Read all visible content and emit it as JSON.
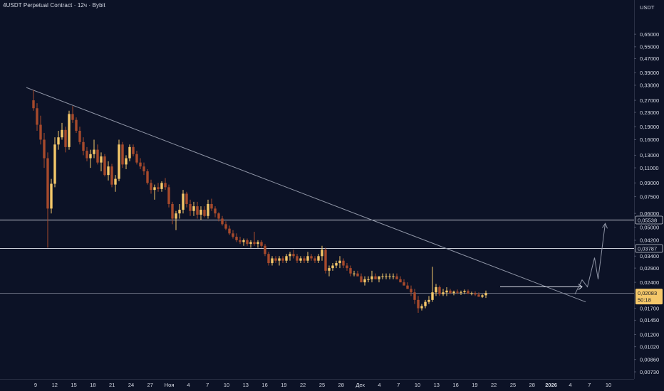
{
  "title": "4USDT Perpetual Contract · 12ч · Bybit",
  "colors": {
    "background": "#0c1226",
    "up": "#f5c86a",
    "down": "#a64a2c",
    "trendline": "#8f95a6",
    "level": "#c8ccd6",
    "projection": "#8f95a6",
    "text": "#d7dbe6",
    "price_tag": "#f5c86a"
  },
  "chart_data": {
    "type": "candlestick",
    "title": "4USDT Perpetual Contract · 12ч · Bybit",
    "currency": "USDT",
    "y_scale": "log",
    "ylim": [
      0.0069,
      0.95
    ],
    "y_ticks": [
      "0,65000",
      "0,55000",
      "0,47000",
      "0,39000",
      "0,33000",
      "0,27000",
      "0,23000",
      "0,19000",
      "0,16000",
      "0,13000",
      "0,11000",
      "0,09000",
      "0,07500",
      "0,06000",
      "0,05000",
      "0,04200",
      "0,03400",
      "0,02900",
      "0,02400",
      "0,01700",
      "0,01450",
      "0,01200",
      "0,01020",
      "0,00860",
      "0,00730"
    ],
    "x_ticks": [
      "9",
      "12",
      "15",
      "18",
      "21",
      "24",
      "27",
      "Ноя",
      "4",
      "7",
      "10",
      "13",
      "16",
      "19",
      "22",
      "25",
      "28",
      "Дек",
      "4",
      "7",
      "10",
      "13",
      "16",
      "19",
      "22",
      "25",
      "28",
      "2026",
      "4",
      "7",
      "10"
    ],
    "x_ticks_bold": [
      "2026"
    ],
    "current_price": {
      "value": "0,02083",
      "countdown": "50:18"
    },
    "horizontal_levels": [
      {
        "value": 0.05538,
        "label": "0,05538"
      },
      {
        "value": 0.03787,
        "label": "0,03787"
      },
      {
        "value": 0.02083
      }
    ],
    "trendline": {
      "from": {
        "candle": 0,
        "price": 0.32
      },
      "to": {
        "candle": 155,
        "price": 0.0185
      }
    },
    "range_arrow": {
      "from_candle": 131,
      "to_candle": 153,
      "price": 0.0226
    },
    "projection_path": [
      [
        152,
        0.0205
      ],
      [
        154,
        0.0248
      ],
      [
        155.5,
        0.0226
      ],
      [
        157.5,
        0.0333
      ],
      [
        158.5,
        0.025
      ],
      [
        160.5,
        0.0525
      ]
    ],
    "grid": false,
    "candles": [
      [
        0.27,
        0.31,
        0.235,
        0.243
      ],
      [
        0.243,
        0.26,
        0.18,
        0.195
      ],
      [
        0.195,
        0.22,
        0.15,
        0.16
      ],
      [
        0.16,
        0.175,
        0.11,
        0.125
      ],
      [
        0.125,
        0.135,
        0.038,
        0.064
      ],
      [
        0.064,
        0.095,
        0.06,
        0.089
      ],
      [
        0.089,
        0.165,
        0.085,
        0.15
      ],
      [
        0.15,
        0.18,
        0.14,
        0.165
      ],
      [
        0.165,
        0.2,
        0.16,
        0.182
      ],
      [
        0.182,
        0.19,
        0.135,
        0.145
      ],
      [
        0.145,
        0.235,
        0.14,
        0.225
      ],
      [
        0.225,
        0.25,
        0.2,
        0.208
      ],
      [
        0.208,
        0.215,
        0.175,
        0.18
      ],
      [
        0.18,
        0.19,
        0.15,
        0.155
      ],
      [
        0.155,
        0.165,
        0.13,
        0.138
      ],
      [
        0.138,
        0.145,
        0.12,
        0.125
      ],
      [
        0.125,
        0.14,
        0.11,
        0.132
      ],
      [
        0.132,
        0.16,
        0.125,
        0.14
      ],
      [
        0.14,
        0.15,
        0.115,
        0.118
      ],
      [
        0.118,
        0.135,
        0.105,
        0.128
      ],
      [
        0.128,
        0.132,
        0.098,
        0.1
      ],
      [
        0.1,
        0.12,
        0.093,
        0.112
      ],
      [
        0.112,
        0.116,
        0.085,
        0.088
      ],
      [
        0.088,
        0.1,
        0.08,
        0.095
      ],
      [
        0.095,
        0.16,
        0.092,
        0.15
      ],
      [
        0.15,
        0.155,
        0.11,
        0.115
      ],
      [
        0.115,
        0.13,
        0.108,
        0.125
      ],
      [
        0.125,
        0.15,
        0.12,
        0.145
      ],
      [
        0.145,
        0.15,
        0.128,
        0.132
      ],
      [
        0.132,
        0.138,
        0.115,
        0.118
      ],
      [
        0.118,
        0.125,
        0.108,
        0.112
      ],
      [
        0.112,
        0.118,
        0.1,
        0.105
      ],
      [
        0.105,
        0.108,
        0.088,
        0.09
      ],
      [
        0.09,
        0.094,
        0.078,
        0.082
      ],
      [
        0.082,
        0.088,
        0.072,
        0.085
      ],
      [
        0.085,
        0.09,
        0.08,
        0.083
      ],
      [
        0.083,
        0.092,
        0.08,
        0.09
      ],
      [
        0.09,
        0.096,
        0.082,
        0.085
      ],
      [
        0.085,
        0.088,
        0.065,
        0.068
      ],
      [
        0.068,
        0.07,
        0.052,
        0.056
      ],
      [
        0.056,
        0.062,
        0.048,
        0.06
      ],
      [
        0.06,
        0.068,
        0.056,
        0.063
      ],
      [
        0.063,
        0.082,
        0.06,
        0.078
      ],
      [
        0.078,
        0.08,
        0.065,
        0.068
      ],
      [
        0.068,
        0.072,
        0.058,
        0.062
      ],
      [
        0.062,
        0.07,
        0.058,
        0.066
      ],
      [
        0.066,
        0.07,
        0.056,
        0.059
      ],
      [
        0.059,
        0.066,
        0.055,
        0.063
      ],
      [
        0.063,
        0.066,
        0.057,
        0.058
      ],
      [
        0.058,
        0.072,
        0.056,
        0.068
      ],
      [
        0.068,
        0.073,
        0.062,
        0.064
      ],
      [
        0.064,
        0.066,
        0.057,
        0.06
      ],
      [
        0.06,
        0.061,
        0.054,
        0.056
      ],
      [
        0.056,
        0.058,
        0.051,
        0.052
      ],
      [
        0.052,
        0.054,
        0.048,
        0.049
      ],
      [
        0.049,
        0.051,
        0.045,
        0.046
      ],
      [
        0.046,
        0.048,
        0.043,
        0.044
      ],
      [
        0.044,
        0.046,
        0.041,
        0.042
      ],
      [
        0.042,
        0.044,
        0.04,
        0.041
      ],
      [
        0.041,
        0.043,
        0.039,
        0.042
      ],
      [
        0.042,
        0.043,
        0.039,
        0.04
      ],
      [
        0.04,
        0.042,
        0.038,
        0.041
      ],
      [
        0.041,
        0.047,
        0.039,
        0.04
      ],
      [
        0.04,
        0.042,
        0.038,
        0.041
      ],
      [
        0.041,
        0.042,
        0.038,
        0.039
      ],
      [
        0.039,
        0.04,
        0.034,
        0.035
      ],
      [
        0.035,
        0.036,
        0.03,
        0.031
      ],
      [
        0.031,
        0.034,
        0.03,
        0.033
      ],
      [
        0.033,
        0.034,
        0.031,
        0.032
      ],
      [
        0.032,
        0.034,
        0.03,
        0.033
      ],
      [
        0.033,
        0.034,
        0.031,
        0.032
      ],
      [
        0.032,
        0.035,
        0.031,
        0.034
      ],
      [
        0.034,
        0.036,
        0.032,
        0.035
      ],
      [
        0.035,
        0.037,
        0.033,
        0.034
      ],
      [
        0.034,
        0.035,
        0.031,
        0.032
      ],
      [
        0.032,
        0.034,
        0.031,
        0.033
      ],
      [
        0.033,
        0.034,
        0.031,
        0.032
      ],
      [
        0.032,
        0.036,
        0.031,
        0.034
      ],
      [
        0.034,
        0.035,
        0.032,
        0.033
      ],
      [
        0.033,
        0.034,
        0.031,
        0.032
      ],
      [
        0.032,
        0.035,
        0.031,
        0.034
      ],
      [
        0.034,
        0.039,
        0.032,
        0.037
      ],
      [
        0.037,
        0.038,
        0.027,
        0.028
      ],
      [
        0.028,
        0.03,
        0.026,
        0.029
      ],
      [
        0.029,
        0.031,
        0.028,
        0.03
      ],
      [
        0.03,
        0.032,
        0.029,
        0.031
      ],
      [
        0.031,
        0.034,
        0.029,
        0.032
      ],
      [
        0.032,
        0.033,
        0.029,
        0.03
      ],
      [
        0.03,
        0.031,
        0.028,
        0.029
      ],
      [
        0.029,
        0.03,
        0.026,
        0.027
      ],
      [
        0.027,
        0.028,
        0.026,
        0.027
      ],
      [
        0.027,
        0.028,
        0.026,
        0.026
      ],
      [
        0.026,
        0.027,
        0.024,
        0.024
      ],
      [
        0.024,
        0.026,
        0.023,
        0.025
      ],
      [
        0.025,
        0.026,
        0.024,
        0.025
      ],
      [
        0.025,
        0.028,
        0.024,
        0.026
      ],
      [
        0.026,
        0.027,
        0.025,
        0.025
      ],
      [
        0.025,
        0.026,
        0.024,
        0.026
      ],
      [
        0.026,
        0.027,
        0.025,
        0.026
      ],
      [
        0.026,
        0.027,
        0.025,
        0.026
      ],
      [
        0.026,
        0.027,
        0.025,
        0.026
      ],
      [
        0.026,
        0.027,
        0.025,
        0.026
      ],
      [
        0.026,
        0.027,
        0.025,
        0.025
      ],
      [
        0.025,
        0.026,
        0.024,
        0.024
      ],
      [
        0.024,
        0.025,
        0.023,
        0.023
      ],
      [
        0.023,
        0.024,
        0.022,
        0.022
      ],
      [
        0.022,
        0.023,
        0.02,
        0.021
      ],
      [
        0.021,
        0.022,
        0.018,
        0.019
      ],
      [
        0.019,
        0.02,
        0.016,
        0.017
      ],
      [
        0.017,
        0.018,
        0.0165,
        0.0175
      ],
      [
        0.0175,
        0.019,
        0.017,
        0.0185
      ],
      [
        0.0185,
        0.02,
        0.018,
        0.019
      ],
      [
        0.019,
        0.0295,
        0.0185,
        0.021
      ],
      [
        0.021,
        0.0235,
        0.02,
        0.0225
      ],
      [
        0.0225,
        0.023,
        0.02,
        0.0205
      ],
      [
        0.0205,
        0.022,
        0.02,
        0.021
      ],
      [
        0.021,
        0.0225,
        0.02,
        0.0215
      ],
      [
        0.0215,
        0.022,
        0.0205,
        0.0208
      ],
      [
        0.0208,
        0.0215,
        0.0202,
        0.0212
      ],
      [
        0.0212,
        0.0218,
        0.0205,
        0.0209
      ],
      [
        0.0209,
        0.0215,
        0.0203,
        0.0211
      ],
      [
        0.0211,
        0.0218,
        0.0205,
        0.0214
      ],
      [
        0.0214,
        0.0218,
        0.0205,
        0.0207
      ],
      [
        0.0207,
        0.0212,
        0.0202,
        0.0208
      ],
      [
        0.0208,
        0.0213,
        0.02,
        0.0204
      ],
      [
        0.0204,
        0.021,
        0.0198,
        0.0198
      ],
      [
        0.0198,
        0.0205,
        0.0195,
        0.0202
      ],
      [
        0.0202,
        0.0215,
        0.0195,
        0.0208
      ]
    ]
  }
}
